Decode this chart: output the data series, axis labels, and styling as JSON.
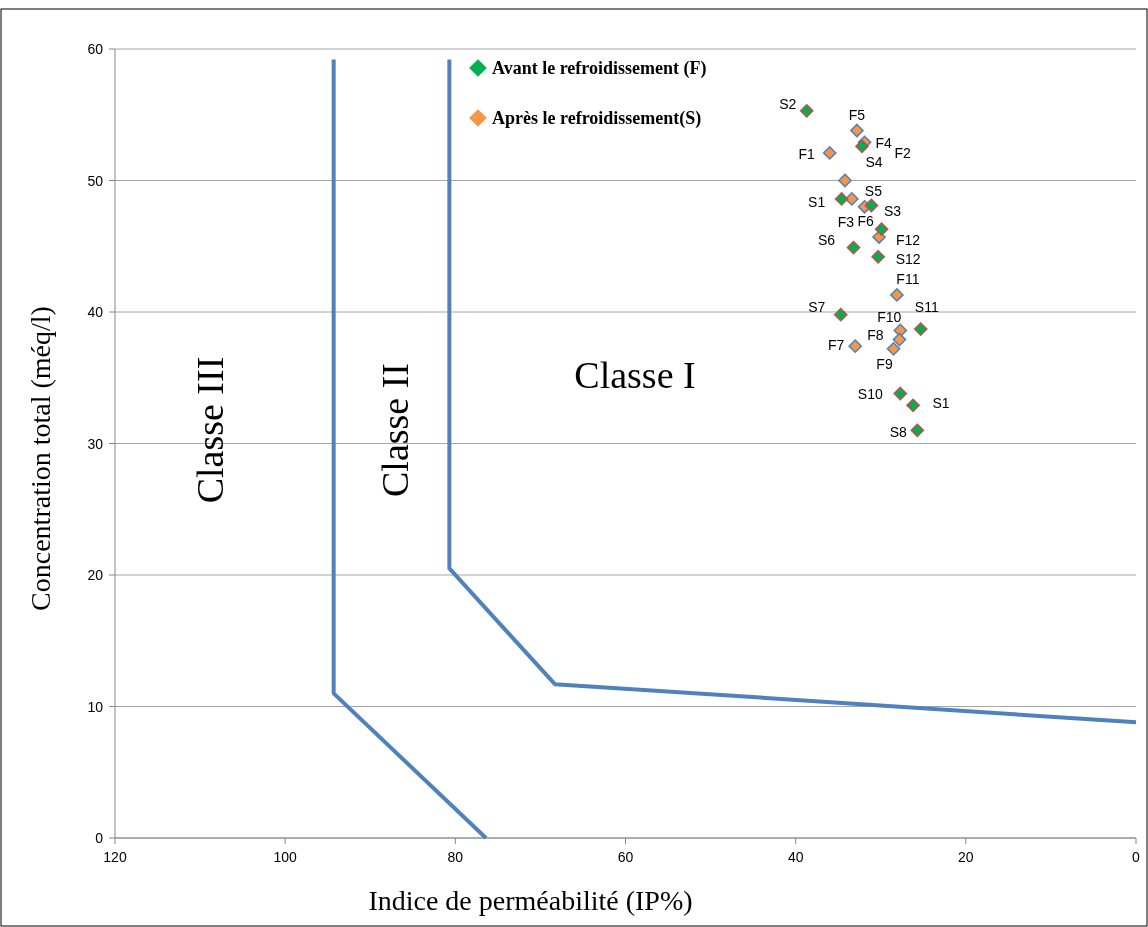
{
  "chart_data": {
    "type": "scatter",
    "xlabel": "Indice de perméabilité (IP%)",
    "ylabel": "Concentration  total (méq/l)",
    "xlim": [
      120,
      0
    ],
    "ylim": [
      0,
      60
    ],
    "xticks": [
      120,
      100,
      80,
      60,
      40,
      20,
      0
    ],
    "yticks": [
      0,
      10,
      20,
      30,
      40,
      50,
      60
    ],
    "grid": "y",
    "legend": "top",
    "marker": "diamond",
    "series": [
      {
        "type": "line",
        "marker": "none",
        "color": "#4f81bd",
        "x": [
          94.3,
          94.3,
          76.4
        ],
        "values": [
          59.2,
          11.0,
          0
        ]
      },
      {
        "type": "line",
        "marker": "none",
        "color": "#4f81bd",
        "x": [
          80.7,
          80.7,
          68.3,
          0
        ],
        "values": [
          59.2,
          20.5,
          11.7,
          8.8
        ]
      },
      {
        "name": "Avant le refroidissement (F)",
        "color": "#00b050",
        "x": [
          38.7,
          32.2,
          34.6,
          31.1,
          29.9,
          33.2,
          30.3,
          34.7,
          25.3,
          27.7,
          26.2,
          25.7
        ],
        "values": [
          55.3,
          52.6,
          48.6,
          48.1,
          46.3,
          44.9,
          44.2,
          39.8,
          38.7,
          33.8,
          32.9,
          31.0
        ]
      },
      {
        "name": "Après le refroidissement(S)",
        "color": "#f79646",
        "x": [
          32.8,
          31.9,
          36.0,
          34.2,
          33.4,
          31.9,
          30.2,
          28.1,
          27.7,
          27.8,
          28.5,
          33.0
        ],
        "values": [
          53.8,
          52.9,
          52.1,
          50.0,
          48.6,
          48.0,
          45.7,
          41.3,
          38.6,
          37.9,
          37.2,
          37.4
        ]
      }
    ],
    "annotations": [
      {
        "text": "S2",
        "x": 38.7,
        "y": 55.3
      },
      {
        "text": "F5",
        "x": 32.8,
        "y": 53.8
      },
      {
        "text": "F4",
        "x": 31.9,
        "y": 52.9
      },
      {
        "text": "F2",
        "x": 31.9,
        "y": 52.9
      },
      {
        "text": "F1",
        "x": 36.0,
        "y": 52.1
      },
      {
        "text": "S4",
        "x": 32.2,
        "y": 52.6
      },
      {
        "text": "S5",
        "x": 31.1,
        "y": 48.1
      },
      {
        "text": "S1",
        "x": 34.6,
        "y": 48.6
      },
      {
        "text": "S3",
        "x": 29.9,
        "y": 46.3
      },
      {
        "text": "F3",
        "x": 33.4,
        "y": 48.6
      },
      {
        "text": "F6",
        "x": 31.9,
        "y": 48.0
      },
      {
        "text": "S6",
        "x": 33.2,
        "y": 44.9
      },
      {
        "text": "F12",
        "x": 30.2,
        "y": 45.7
      },
      {
        "text": "S12",
        "x": 30.3,
        "y": 44.2
      },
      {
        "text": "F11",
        "x": 28.1,
        "y": 41.3
      },
      {
        "text": "S7",
        "x": 34.7,
        "y": 39.8
      },
      {
        "text": "S11",
        "x": 25.3,
        "y": 38.7
      },
      {
        "text": "F10",
        "x": 27.7,
        "y": 38.6
      },
      {
        "text": "F8",
        "x": 27.8,
        "y": 37.9
      },
      {
        "text": "F7",
        "x": 33.0,
        "y": 37.4
      },
      {
        "text": "F9",
        "x": 28.5,
        "y": 37.2
      },
      {
        "text": "S10",
        "x": 27.7,
        "y": 33.8
      },
      {
        "text": "S1",
        "x": 26.2,
        "y": 32.9
      },
      {
        "text": "S8",
        "x": 25.7,
        "y": 31.0
      },
      "Classe III",
      "Classe II",
      "Classe I"
    ]
  }
}
